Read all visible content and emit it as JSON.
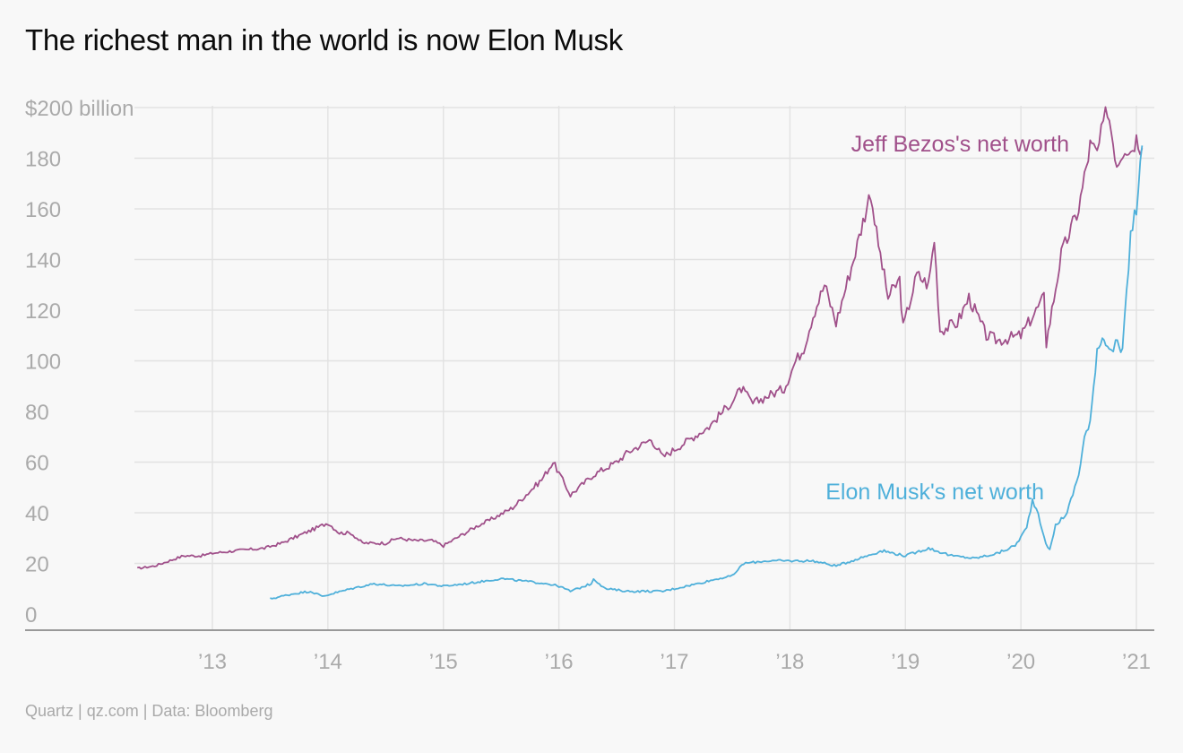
{
  "title": "The richest man in the world is now Elon Musk",
  "footer": "Quartz | qz.com | Data: Bloomberg",
  "chart_data": {
    "type": "line",
    "title": "The richest man in the world is now Elon Musk",
    "xlabel": "",
    "ylabel": "",
    "ylim": [
      0,
      200
    ],
    "xlim": [
      2012.3,
      2021.15
    ],
    "y_ticks": [
      0,
      20,
      40,
      60,
      80,
      100,
      120,
      140,
      160,
      180,
      200
    ],
    "y_tick_labels": [
      "0",
      "20",
      "40",
      "60",
      "80",
      "100",
      "120",
      "140",
      "160",
      "180",
      "$200 billion"
    ],
    "x_ticks": [
      2013,
      2014,
      2015,
      2016,
      2017,
      2018,
      2019,
      2020,
      2021
    ],
    "x_tick_labels": [
      "’13",
      "’14",
      "’15",
      "’16",
      "’17",
      "’18",
      "’19",
      "’20",
      "’21"
    ],
    "grid": true,
    "legend": "none",
    "series": [
      {
        "name": "Jeff Bezos's net worth",
        "color": "#a0508a",
        "x": [
          2012.35,
          2012.5,
          2012.75,
          2012.9,
          2013.0,
          2013.2,
          2013.45,
          2013.6,
          2013.85,
          2014.0,
          2014.1,
          2014.2,
          2014.3,
          2014.5,
          2014.6,
          2014.75,
          2014.9,
          2015.0,
          2015.3,
          2015.4,
          2015.6,
          2015.85,
          2015.95,
          2016.1,
          2016.3,
          2016.5,
          2016.6,
          2016.8,
          2016.9,
          2017.1,
          2017.3,
          2017.5,
          2017.58,
          2017.68,
          2017.8,
          2017.95,
          2018.05,
          2018.12,
          2018.2,
          2018.3,
          2018.4,
          2018.55,
          2018.7,
          2018.75,
          2018.85,
          2018.95,
          2018.98,
          2019.1,
          2019.2,
          2019.25,
          2019.3,
          2019.45,
          2019.55,
          2019.7,
          2019.8,
          2020.0,
          2020.08,
          2020.2,
          2020.22,
          2020.35,
          2020.5,
          2020.6,
          2020.66,
          2020.75,
          2020.83,
          2020.9,
          2020.95,
          2021.0,
          2021.05
        ],
        "values": [
          18,
          19,
          23,
          23,
          24,
          25,
          26,
          28,
          33,
          36,
          32,
          32,
          28,
          28,
          30,
          29,
          29,
          27,
          35,
          37,
          42,
          53,
          60,
          47,
          55,
          60,
          64,
          69,
          62,
          68,
          74,
          84,
          89,
          83,
          86,
          89,
          100,
          105,
          118,
          130,
          115,
          140,
          167,
          150,
          125,
          132,
          113,
          134,
          130,
          148,
          112,
          115,
          125,
          110,
          108,
          110,
          116,
          125,
          107,
          142,
          160,
          185,
          182,
          200,
          178,
          185,
          183,
          188,
          184
        ]
      },
      {
        "name": "Elon Musk's net worth",
        "color": "#4fb0da",
        "x": [
          2013.5,
          2013.7,
          2013.85,
          2013.95,
          2014.2,
          2014.4,
          2014.6,
          2014.85,
          2015.0,
          2015.2,
          2015.35,
          2015.5,
          2015.7,
          2015.9,
          2016.0,
          2016.1,
          2016.28,
          2016.3,
          2016.4,
          2016.6,
          2016.8,
          2016.9,
          2017.0,
          2017.2,
          2017.38,
          2017.5,
          2017.6,
          2017.8,
          2018.0,
          2018.2,
          2018.4,
          2018.6,
          2018.8,
          2019.0,
          2019.2,
          2019.4,
          2019.6,
          2019.8,
          2019.95,
          2020.05,
          2020.1,
          2020.15,
          2020.2,
          2020.25,
          2020.3,
          2020.4,
          2020.5,
          2020.55,
          2020.6,
          2020.66,
          2020.72,
          2020.78,
          2020.82,
          2020.88,
          2020.95,
          2021.0,
          2021.05
        ],
        "values": [
          6,
          8,
          9,
          7,
          10,
          12,
          11,
          12,
          11,
          12,
          13,
          14,
          13,
          12,
          11,
          9,
          12,
          14,
          10,
          9,
          9,
          9,
          10,
          12,
          14,
          15,
          20,
          21,
          21,
          21,
          19,
          22,
          25,
          23,
          26,
          23,
          22,
          24,
          27,
          34,
          45,
          40,
          30,
          25,
          35,
          40,
          55,
          70,
          75,
          105,
          110,
          103,
          107,
          103,
          150,
          160,
          185
        ]
      }
    ]
  }
}
